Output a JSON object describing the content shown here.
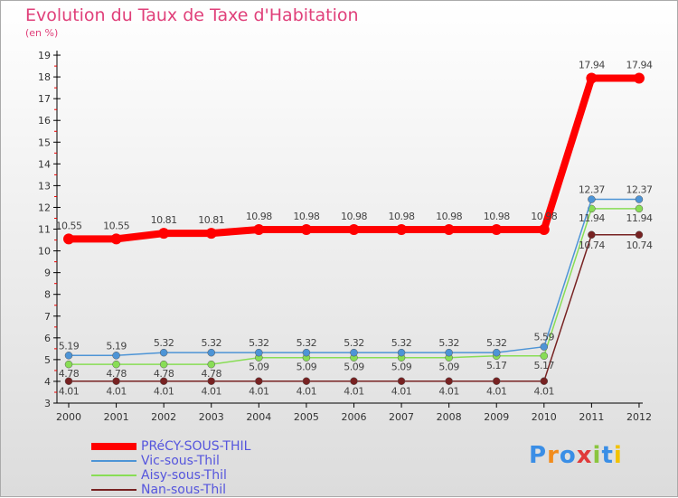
{
  "chart_data": {
    "type": "line",
    "title": "Evolution du Taux de Taxe d'Habitation",
    "ylabel": "(en %)",
    "x": [
      "2000",
      "2001",
      "2002",
      "2003",
      "2004",
      "2005",
      "2006",
      "2007",
      "2008",
      "2009",
      "2010",
      "2011",
      "2012"
    ],
    "yticks": [
      "3",
      "4",
      "5",
      "6",
      "7",
      "8",
      "9",
      "10",
      "11",
      "12",
      "13",
      "14",
      "15",
      "16",
      "17",
      "18",
      "19"
    ],
    "ylim": [
      3,
      19
    ],
    "series": [
      {
        "name": "PRéCY-SOUS-THIL",
        "color": "#ff0000",
        "values": [
          10.55,
          10.55,
          10.81,
          10.81,
          10.98,
          10.98,
          10.98,
          10.98,
          10.98,
          10.98,
          10.98,
          17.94,
          17.94
        ],
        "labels": [
          "10.55",
          "10.55",
          "10.81",
          "10.81",
          "10.98",
          "10.98",
          "10.98",
          "10.98",
          "10.98",
          "10.98",
          "10.98",
          "17.94",
          "17.94"
        ]
      },
      {
        "name": "Vic-sous-Thil",
        "color": "#4d94d6",
        "values": [
          5.19,
          5.19,
          5.32,
          5.32,
          5.32,
          5.32,
          5.32,
          5.32,
          5.32,
          5.32,
          5.59,
          12.37,
          12.37
        ],
        "labels": [
          "5.19",
          "5.19",
          "5.32",
          "5.32",
          "5.32",
          "5.32",
          "5.32",
          "5.32",
          "5.32",
          "5.32",
          "5.59",
          "12.37",
          "12.37"
        ]
      },
      {
        "name": "Aisy-sous-Thil",
        "color": "#88dd55",
        "values": [
          4.78,
          4.78,
          4.78,
          4.78,
          5.09,
          5.09,
          5.09,
          5.09,
          5.09,
          5.17,
          5.17,
          11.94,
          11.94
        ],
        "labels": [
          "4.78",
          "4.78",
          "4.78",
          "4.78",
          "5.09",
          "5.09",
          "5.09",
          "5.09",
          "5.09",
          "5.17",
          "5.17",
          "11.94",
          "11.94"
        ]
      },
      {
        "name": "Nan-sous-Thil",
        "color": "#772222",
        "values": [
          4.01,
          4.01,
          4.01,
          4.01,
          4.01,
          4.01,
          4.01,
          4.01,
          4.01,
          4.01,
          4.01,
          10.74,
          10.74
        ],
        "labels": [
          "4.01",
          "4.01",
          "4.01",
          "4.01",
          "4.01",
          "4.01",
          "4.01",
          "4.01",
          "4.01",
          "4.01",
          "4.01",
          "10.74",
          "10.74"
        ]
      }
    ]
  },
  "logo": "Proxiti"
}
